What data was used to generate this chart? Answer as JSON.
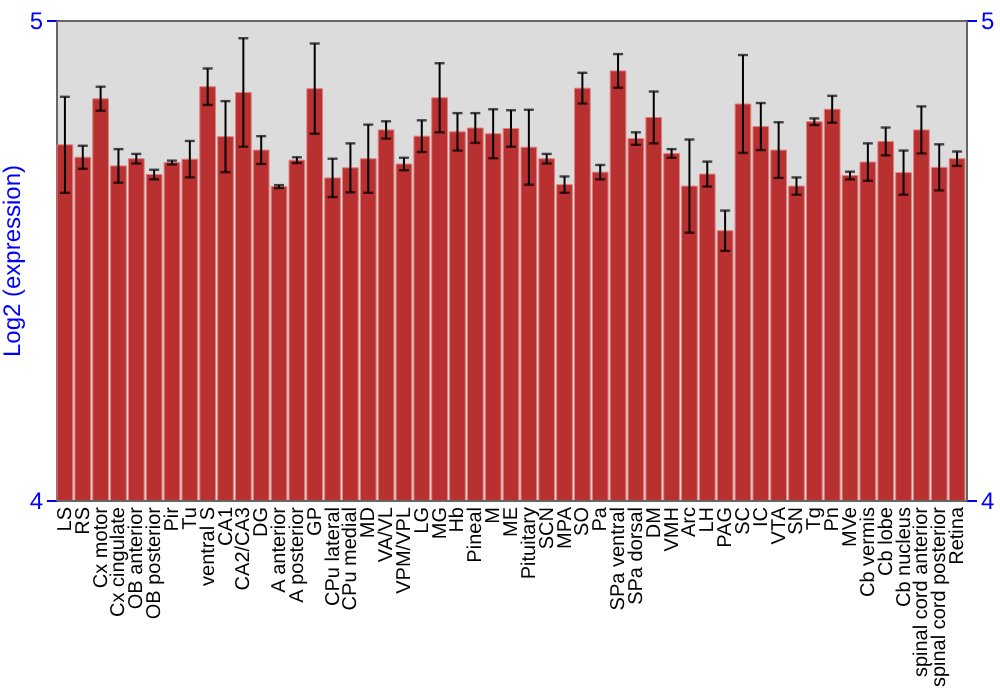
{
  "chart_data": {
    "type": "bar",
    "ylabel": "Log2 (expression)",
    "color": "#b83030",
    "categories": [
      "LS",
      "RS",
      "Cx motor",
      "Cx cingulate",
      "OB anterior",
      "OB posterior",
      "Pir",
      "Tu",
      "ventral S",
      "CA1",
      "CA2/CA3",
      "DG",
      "A anterior",
      "A posterior",
      "GP",
      "CPu lateral",
      "CPu medial",
      "MD",
      "VA/VL",
      "VPM/VPL",
      "LG",
      "MG",
      "Hb",
      "Pineal",
      "M",
      "ME",
      "Pituitary",
      "SCN",
      "MPA",
      "SO",
      "Pa",
      "SPa ventral",
      "SPa dorsal",
      "DM",
      "VMH",
      "Arc",
      "LH",
      "PAG",
      "SC",
      "IC",
      "VTA",
      "SN",
      "Tg",
      "Pn",
      "MVe",
      "Cb vermis",
      "Cb lobe",
      "Cb nucleus",
      "spinal cord anterior",
      "spinal cord posterior",
      "Retina"
    ],
    "values": [
      4.74,
      4.714,
      4.836,
      4.696,
      4.711,
      4.678,
      4.703,
      4.71,
      4.861,
      4.757,
      4.849,
      4.729,
      4.653,
      4.708,
      4.857,
      4.671,
      4.692,
      4.711,
      4.771,
      4.7,
      4.758,
      4.838,
      4.767,
      4.775,
      4.763,
      4.774,
      4.735,
      4.711,
      4.657,
      4.858,
      4.683,
      4.894,
      4.753,
      4.797,
      4.722,
      4.654,
      4.679,
      4.561,
      4.825,
      4.778,
      4.729,
      4.654,
      4.788,
      4.814,
      4.676,
      4.704,
      4.747,
      4.682,
      4.771,
      4.693,
      4.711
    ],
    "errors": [
      0.1,
      0.024,
      0.025,
      0.035,
      0.01,
      0.01,
      0.004,
      0.038,
      0.038,
      0.074,
      0.113,
      0.029,
      0.003,
      0.006,
      0.094,
      0.04,
      0.051,
      0.071,
      0.018,
      0.013,
      0.033,
      0.072,
      0.039,
      0.031,
      0.051,
      0.038,
      0.078,
      0.01,
      0.017,
      0.032,
      0.015,
      0.035,
      0.013,
      0.054,
      0.009,
      0.097,
      0.026,
      0.042,
      0.102,
      0.049,
      0.058,
      0.018,
      0.007,
      0.028,
      0.008,
      0.039,
      0.029,
      0.046,
      0.049,
      0.048,
      0.015
    ],
    "ylim": [
      4,
      5
    ],
    "yticks": [
      4,
      5
    ],
    "y2lim": [
      4,
      5
    ],
    "y2ticks": [
      4,
      5
    ],
    "grid": false
  }
}
